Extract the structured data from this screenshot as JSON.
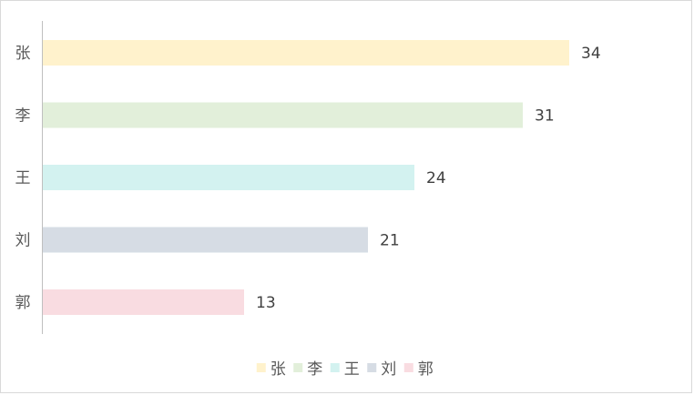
{
  "chart_data": {
    "type": "bar",
    "orientation": "horizontal",
    "categories": [
      "张",
      "李",
      "王",
      "刘",
      "郭"
    ],
    "values": [
      34,
      31,
      24,
      21,
      13
    ],
    "colors": [
      "#FFF2CC",
      "#E2EFDA",
      "#D3F2F0",
      "#D6DCE4",
      "#F9DCE1"
    ],
    "xlim": [
      0,
      40
    ],
    "data_labels": true,
    "grid": false,
    "legend": {
      "position": "bottom",
      "entries": [
        "张",
        "李",
        "王",
        "刘",
        "郭"
      ]
    }
  }
}
